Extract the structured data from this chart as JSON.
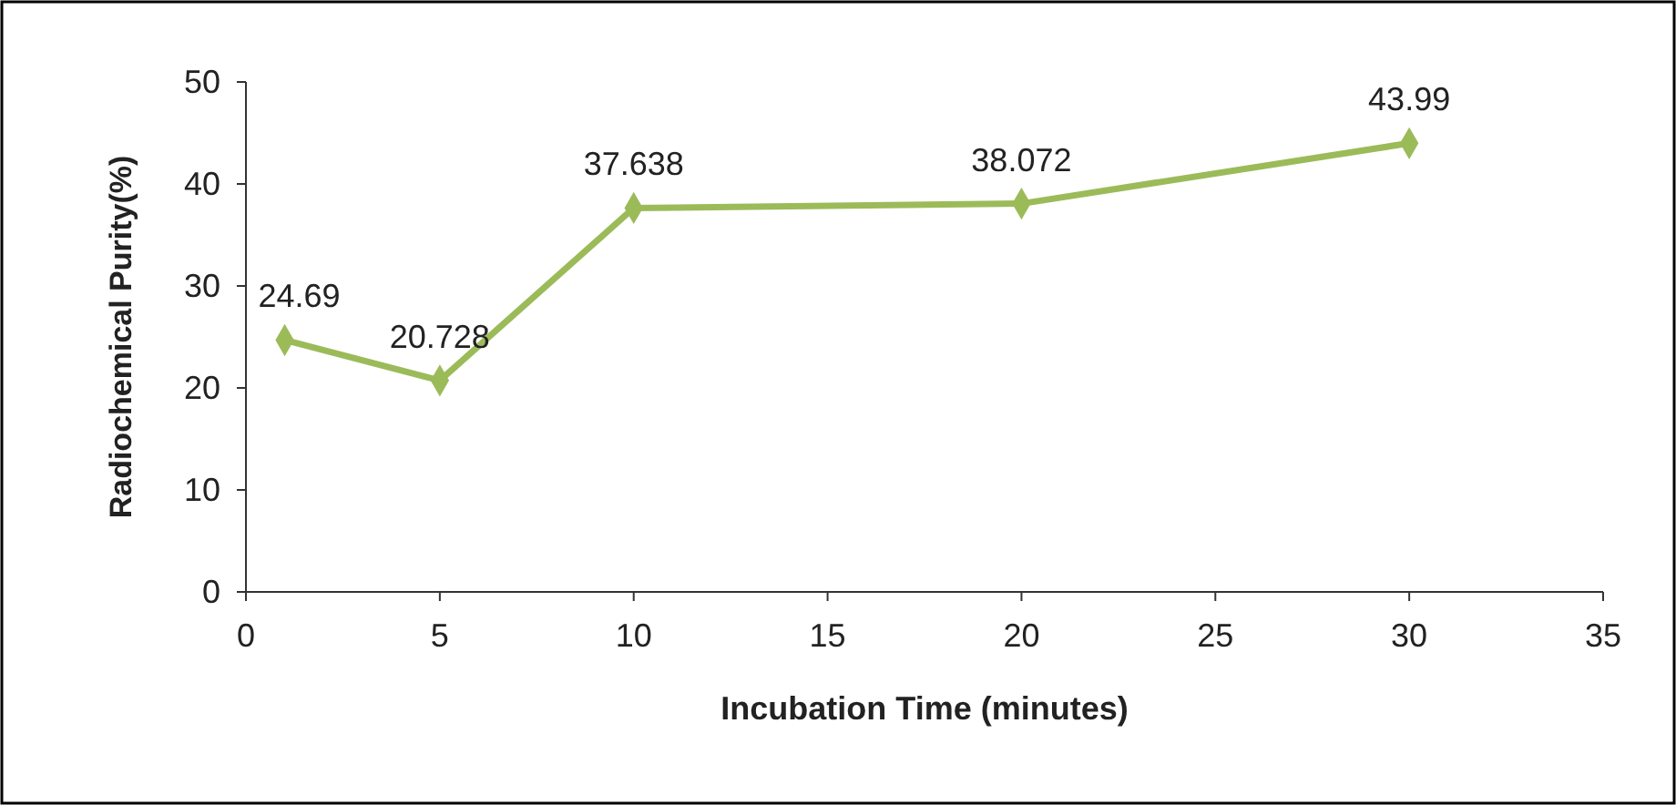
{
  "chart_data": {
    "type": "line",
    "xlabel": "Incubation Time (minutes)",
    "ylabel": "Radiochemical Purity(%)",
    "x": [
      1,
      5,
      10,
      20,
      30
    ],
    "series": [
      {
        "color": "#9bbb59",
        "values": [
          24.69,
          20.728,
          37.638,
          38.072,
          43.99
        ]
      }
    ],
    "xlim": [
      0,
      35
    ],
    "xticks": [
      0,
      5,
      10,
      15,
      20,
      25,
      30,
      35
    ],
    "ylim": [
      0,
      50
    ],
    "yticks": [
      0,
      10,
      20,
      30,
      40,
      50
    ],
    "grid": false,
    "marker": "diamond",
    "line_style": "solid",
    "data_labels": true
  }
}
